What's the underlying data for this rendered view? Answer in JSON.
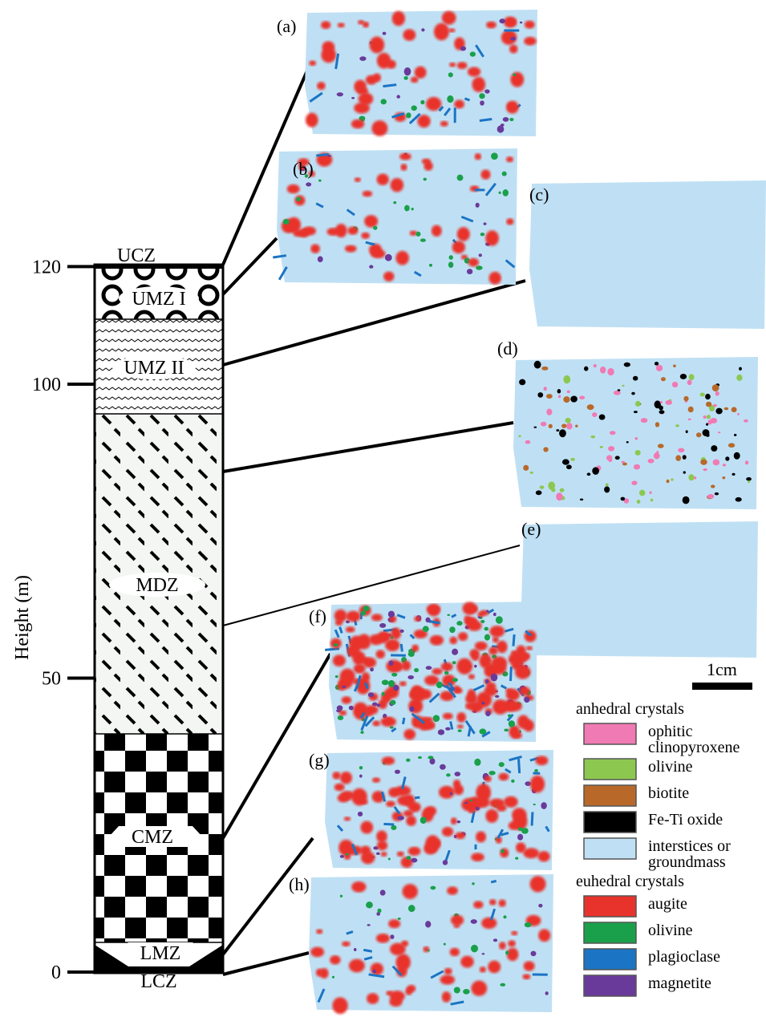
{
  "axis": {
    "label": "Height (m)",
    "ticks": [
      0,
      50,
      100,
      120
    ]
  },
  "zones": [
    "UCZ",
    "UMZ I",
    "UMZ II",
    "MDZ",
    "CMZ",
    "LMZ",
    "LCZ"
  ],
  "panels": [
    "(a)",
    "(b)",
    "(c)",
    "(d)",
    "(e)",
    "(f)",
    "(g)",
    "(h)"
  ],
  "scale_bar": "1cm",
  "legend": {
    "anhedral": {
      "title": "anhedral crystals",
      "items": [
        {
          "lines": [
            "ophitic",
            "clinopyroxene"
          ],
          "color": "#f07ab4"
        },
        {
          "lines": [
            "olivine"
          ],
          "color": "#8cc850"
        },
        {
          "lines": [
            "biotite"
          ],
          "color": "#b8692a"
        },
        {
          "lines": [
            "Fe-Ti oxide"
          ],
          "color": "#000000"
        },
        {
          "lines": [
            "interstices or",
            "groundmass"
          ],
          "color": "#bfe0f4"
        }
      ]
    },
    "euhedral": {
      "title": "euhedral crystals",
      "items": [
        {
          "lines": [
            "augite"
          ],
          "color": "#e8332c"
        },
        {
          "lines": [
            "olivine"
          ],
          "color": "#1aa04a"
        },
        {
          "lines": [
            "plagioclase"
          ],
          "color": "#1b74c4"
        },
        {
          "lines": [
            "magnetite"
          ],
          "color": "#6a3a9a"
        }
      ]
    }
  }
}
